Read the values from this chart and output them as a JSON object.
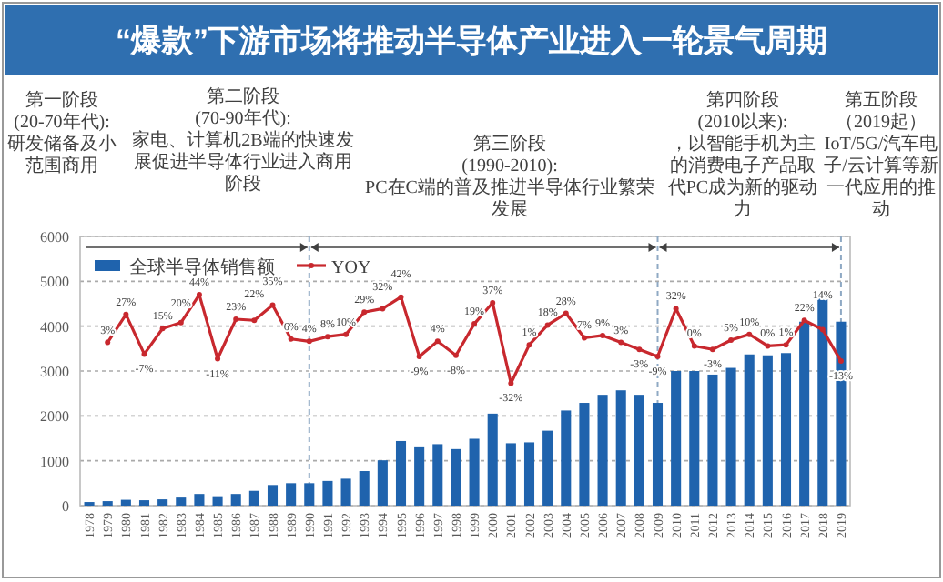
{
  "chart_data": {
    "type": "bar",
    "title": "“爆款”下游市场将推动半导体产业进入一轮景气周期",
    "annotations": [
      "第一阶段",
      "(20-70年代):",
      "研发储备及小范围商用",
      "第二阶段",
      "(70-90年代):",
      "家电、计算机2B端的快速发展促进半导体行业进入商用阶段",
      "第三阶段",
      "(1990-2010):",
      "PC在C端的普及推进半导体行业繁荣发展",
      "第四阶段",
      "(2010以来):",
      "，以智能手机为主的消费电子产品取代PC成为新的驱动力",
      "第五阶段",
      "（2019起）",
      "IoT/5G/汽车电子/云计算等新一代应用的推动"
    ],
    "categories": [
      "1978",
      "1979",
      "1980",
      "1981",
      "1982",
      "1983",
      "1984",
      "1985",
      "1986",
      "1987",
      "1988",
      "1989",
      "1990",
      "1991",
      "1992",
      "1993",
      "1994",
      "1995",
      "1996",
      "1997",
      "1998",
      "1999",
      "2000",
      "2001",
      "2002",
      "2003",
      "2004",
      "2005",
      "2006",
      "2007",
      "2008",
      "2009",
      "2010",
      "2011",
      "2012",
      "2013",
      "2014",
      "2015",
      "2016",
      "2017",
      "2018",
      "2019"
    ],
    "series": [
      {
        "name": "全球半导体销售额",
        "color": "#1f63ad",
        "values": [
          80,
          100,
          130,
          120,
          140,
          180,
          260,
          210,
          260,
          330,
          460,
          500,
          500,
          550,
          600,
          770,
          1010,
          1440,
          1320,
          1370,
          1260,
          1490,
          2050,
          1390,
          1410,
          1670,
          2120,
          2290,
          2470,
          2570,
          2470,
          2290,
          3000,
          3000,
          2920,
          3070,
          3370,
          3350,
          3400,
          4100,
          4670,
          4100
        ]
      },
      {
        "name": "YOY",
        "type": "line",
        "axis": "y2",
        "color": "#c8282e",
        "marker": "circle",
        "values": [
          null,
          3,
          27,
          -7,
          15,
          20,
          44,
          -11,
          23,
          22,
          35,
          6,
          4,
          8,
          10,
          29,
          32,
          42,
          -9,
          4,
          -8,
          19,
          37,
          -32,
          1,
          18,
          28,
          7,
          9,
          3,
          -3,
          -9,
          32,
          0,
          -3,
          5,
          10,
          0,
          1,
          22,
          14,
          -13
        ],
        "value_labels": [
          null,
          "3%",
          "27%",
          "-7%",
          "15%",
          "20%",
          "44%",
          "-11%",
          "23%",
          "22%",
          "35%",
          "6%",
          "4%",
          "8%",
          "10%",
          "29%",
          "32%",
          "42%",
          "-9%",
          "4%",
          "-8%",
          "19%",
          "37%",
          "-32%",
          "1%",
          "18%",
          "28%",
          "7%",
          "9%",
          "3%",
          "-3%",
          "-9%",
          "32%",
          "0%",
          "-3%",
          "5%",
          "10%",
          "0%",
          "1%",
          "22%",
          "14%",
          "-13%"
        ]
      }
    ],
    "ylim": [
      0,
      6000
    ],
    "yticks": [
      0,
      1000,
      2000,
      3000,
      4000,
      5000,
      6000
    ],
    "y2lim": [
      -137,
      94
    ],
    "tick_labels": "xy",
    "ref_lines": [
      {
        "axis": "x",
        "value": "1990",
        "line_style": "dashed"
      },
      {
        "axis": "x",
        "value": "2009",
        "line_style": "dashed"
      },
      {
        "axis": "x",
        "value": "2019",
        "line_style": "dashed"
      }
    ],
    "grid": "y",
    "legend": "top left"
  }
}
